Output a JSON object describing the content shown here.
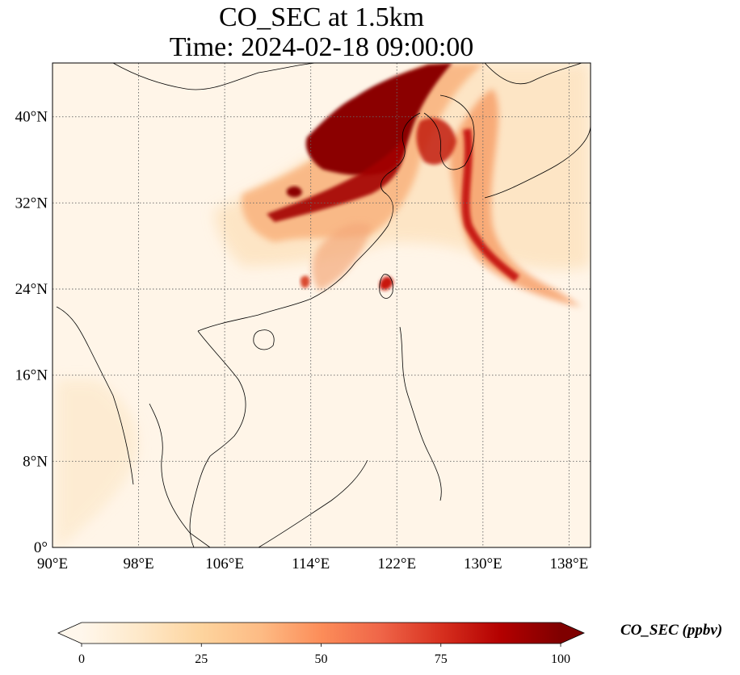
{
  "title": {
    "line1": "CO_SEC at 1.5km",
    "line2": "Time: 2024-02-18 09:00:00"
  },
  "map": {
    "lon_range": [
      90,
      140
    ],
    "lat_range": [
      0,
      45
    ],
    "lon_ticks": [
      {
        "value": 90,
        "label": "90°E"
      },
      {
        "value": 98,
        "label": "98°E"
      },
      {
        "value": 106,
        "label": "106°E"
      },
      {
        "value": 114,
        "label": "114°E"
      },
      {
        "value": 122,
        "label": "122°E"
      },
      {
        "value": 130,
        "label": "130°E"
      },
      {
        "value": 138,
        "label": "138°E"
      }
    ],
    "lat_ticks": [
      {
        "value": 0,
        "label": "0°"
      },
      {
        "value": 8,
        "label": "8°N"
      },
      {
        "value": 16,
        "label": "16°N"
      },
      {
        "value": 24,
        "label": "24°N"
      },
      {
        "value": 32,
        "label": "32°N"
      },
      {
        "value": 40,
        "label": "40°N"
      }
    ],
    "gridlines": "dotted",
    "colormap": "OrRd",
    "background_color": "#fff5e8",
    "plume_colors": [
      "#fdd9a9",
      "#f9a26a",
      "#e4572e",
      "#b30000",
      "#7f0000"
    ]
  },
  "colorbar": {
    "label": "CO_SEC (ppbv)",
    "min": 0,
    "max": 100,
    "ticks": [
      {
        "value": 0,
        "label": "0"
      },
      {
        "value": 25,
        "label": "25"
      },
      {
        "value": 50,
        "label": "50"
      },
      {
        "value": 75,
        "label": "75"
      },
      {
        "value": 100,
        "label": "100"
      }
    ],
    "extend": "both",
    "colors": [
      "#fff7ec",
      "#fee8c8",
      "#fdd49e",
      "#fdbb84",
      "#fc8d59",
      "#ef6548",
      "#d7301f",
      "#b30000",
      "#7f0000"
    ]
  }
}
